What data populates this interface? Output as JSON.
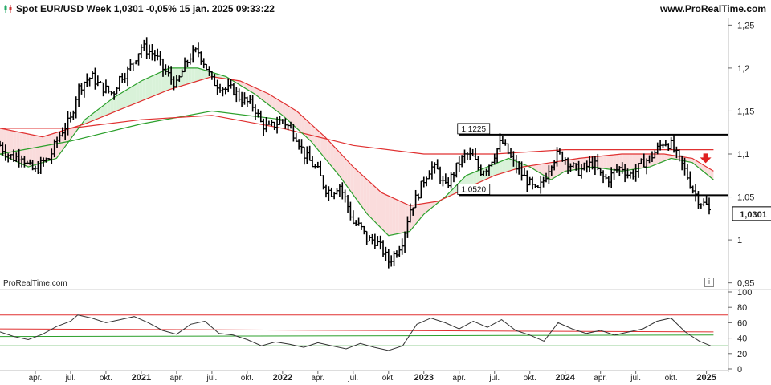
{
  "header": {
    "title": "Spot EUR/USD Week 1,0301 -0,05% 15 jan. 2025 09:33:22",
    "brand": "www.ProRealTime.com"
  },
  "watermark": "ProRealTime.com",
  "info_icon": "i",
  "icons": {
    "chart_icon": "candlestick-icon",
    "signal": "down-arrow-icon",
    "info": "info-icon"
  },
  "colors": {
    "price": "#000000",
    "ma_fast": "#2ca02c",
    "ma_slow": "#e03030",
    "rsi_upper": "#e03030",
    "rsi_lower": "#2ca02c",
    "signal": "#e02020",
    "fill_green": "#d9f2d9",
    "fill_red": "#fadcdc"
  },
  "chart_data": [
    {
      "type": "ohlc",
      "title": "Spot EUR/USD Week",
      "last_value": "1,0301",
      "ylim": [
        0.945,
        1.255
      ],
      "y_ticks": [
        "1,25",
        "1,2",
        "1,15",
        "1,1",
        "1,05",
        "1",
        "0,95"
      ],
      "y_tick_values": [
        1.25,
        1.2,
        1.15,
        1.1,
        1.05,
        1.0,
        0.95
      ],
      "x_ticks": [
        "apr.",
        "jul.",
        "okt.",
        "2021",
        "apr.",
        "jul.",
        "okt.",
        "2022",
        "apr.",
        "jul.",
        "okt.",
        "2023",
        "apr.",
        "jul.",
        "okt.",
        "2024",
        "apr.",
        "jul.",
        "okt.",
        "2025"
      ],
      "x_tick_dates": [
        2020.25,
        2020.5,
        2020.75,
        2021.0,
        2021.25,
        2021.5,
        2021.75,
        2022.0,
        2022.25,
        2022.5,
        2022.75,
        2023.0,
        2023.25,
        2023.5,
        2023.75,
        2024.0,
        2024.25,
        2024.5,
        2024.75,
        2025.0
      ],
      "xlim": [
        2020.0,
        2025.15
      ],
      "close_path": [
        [
          2020.0,
          1.11
        ],
        [
          2020.05,
          1.1
        ],
        [
          2020.1,
          1.095
        ],
        [
          2020.15,
          1.1
        ],
        [
          2020.2,
          1.085
        ],
        [
          2020.25,
          1.08
        ],
        [
          2020.3,
          1.09
        ],
        [
          2020.35,
          1.095
        ],
        [
          2020.4,
          1.115
        ],
        [
          2020.45,
          1.13
        ],
        [
          2020.5,
          1.14
        ],
        [
          2020.55,
          1.175
        ],
        [
          2020.6,
          1.185
        ],
        [
          2020.65,
          1.19
        ],
        [
          2020.7,
          1.18
        ],
        [
          2020.75,
          1.175
        ],
        [
          2020.8,
          1.17
        ],
        [
          2020.85,
          1.19
        ],
        [
          2020.9,
          1.195
        ],
        [
          2020.95,
          1.21
        ],
        [
          2021.0,
          1.225
        ],
        [
          2021.05,
          1.22
        ],
        [
          2021.1,
          1.215
        ],
        [
          2021.15,
          1.2
        ],
        [
          2021.2,
          1.19
        ],
        [
          2021.25,
          1.18
        ],
        [
          2021.3,
          1.2
        ],
        [
          2021.35,
          1.215
        ],
        [
          2021.4,
          1.22
        ],
        [
          2021.45,
          1.205
        ],
        [
          2021.5,
          1.185
        ],
        [
          2021.55,
          1.18
        ],
        [
          2021.6,
          1.175
        ],
        [
          2021.65,
          1.175
        ],
        [
          2021.7,
          1.165
        ],
        [
          2021.75,
          1.16
        ],
        [
          2021.8,
          1.155
        ],
        [
          2021.85,
          1.135
        ],
        [
          2021.9,
          1.13
        ],
        [
          2021.95,
          1.135
        ],
        [
          2022.0,
          1.14
        ],
        [
          2022.05,
          1.13
        ],
        [
          2022.1,
          1.12
        ],
        [
          2022.15,
          1.1
        ],
        [
          2022.2,
          1.09
        ],
        [
          2022.25,
          1.08
        ],
        [
          2022.3,
          1.06
        ],
        [
          2022.35,
          1.055
        ],
        [
          2022.4,
          1.065
        ],
        [
          2022.45,
          1.045
        ],
        [
          2022.5,
          1.02
        ],
        [
          2022.55,
          1.015
        ],
        [
          2022.6,
          1.0
        ],
        [
          2022.65,
          1.0
        ],
        [
          2022.7,
          0.99
        ],
        [
          2022.75,
          0.975
        ],
        [
          2022.8,
          0.985
        ],
        [
          2022.85,
          1.0
        ],
        [
          2022.9,
          1.035
        ],
        [
          2022.95,
          1.05
        ],
        [
          2023.0,
          1.07
        ],
        [
          2023.05,
          1.085
        ],
        [
          2023.1,
          1.08
        ],
        [
          2023.15,
          1.06
        ],
        [
          2023.2,
          1.075
        ],
        [
          2023.25,
          1.09
        ],
        [
          2023.3,
          1.1
        ],
        [
          2023.35,
          1.095
        ],
        [
          2023.4,
          1.08
        ],
        [
          2023.45,
          1.085
        ],
        [
          2023.5,
          1.1
        ],
        [
          2023.55,
          1.115
        ],
        [
          2023.6,
          1.1
        ],
        [
          2023.65,
          1.085
        ],
        [
          2023.7,
          1.075
        ],
        [
          2023.75,
          1.065
        ],
        [
          2023.8,
          1.055
        ],
        [
          2023.85,
          1.07
        ],
        [
          2023.9,
          1.09
        ],
        [
          2023.95,
          1.1
        ],
        [
          2024.0,
          1.095
        ],
        [
          2024.05,
          1.085
        ],
        [
          2024.1,
          1.08
        ],
        [
          2024.15,
          1.085
        ],
        [
          2024.2,
          1.09
        ],
        [
          2024.25,
          1.075
        ],
        [
          2024.3,
          1.07
        ],
        [
          2024.35,
          1.08
        ],
        [
          2024.4,
          1.085
        ],
        [
          2024.45,
          1.075
        ],
        [
          2024.5,
          1.08
        ],
        [
          2024.55,
          1.09
        ],
        [
          2024.6,
          1.095
        ],
        [
          2024.65,
          1.105
        ],
        [
          2024.7,
          1.115
        ],
        [
          2024.75,
          1.11
        ],
        [
          2024.8,
          1.095
        ],
        [
          2024.85,
          1.08
        ],
        [
          2024.9,
          1.06
        ],
        [
          2024.95,
          1.045
        ],
        [
          2025.0,
          1.04
        ],
        [
          2025.03,
          1.03
        ]
      ],
      "ma_fast_path": [
        [
          2020.0,
          1.1
        ],
        [
          2020.2,
          1.085
        ],
        [
          2020.4,
          1.095
        ],
        [
          2020.6,
          1.14
        ],
        [
          2020.8,
          1.165
        ],
        [
          2021.0,
          1.185
        ],
        [
          2021.2,
          1.2
        ],
        [
          2021.4,
          1.2
        ],
        [
          2021.6,
          1.19
        ],
        [
          2021.8,
          1.17
        ],
        [
          2022.0,
          1.145
        ],
        [
          2022.2,
          1.115
        ],
        [
          2022.4,
          1.075
        ],
        [
          2022.6,
          1.03
        ],
        [
          2022.75,
          1.005
        ],
        [
          2022.9,
          1.01
        ],
        [
          2023.0,
          1.03
        ],
        [
          2023.15,
          1.05
        ],
        [
          2023.3,
          1.075
        ],
        [
          2023.45,
          1.085
        ],
        [
          2023.6,
          1.095
        ],
        [
          2023.75,
          1.085
        ],
        [
          2023.9,
          1.07
        ],
        [
          2024.0,
          1.08
        ],
        [
          2024.2,
          1.085
        ],
        [
          2024.4,
          1.08
        ],
        [
          2024.6,
          1.085
        ],
        [
          2024.75,
          1.095
        ],
        [
          2024.9,
          1.09
        ],
        [
          2025.05,
          1.07
        ]
      ],
      "ma_slow_path": [
        [
          2020.0,
          1.13
        ],
        [
          2020.3,
          1.12
        ],
        [
          2020.6,
          1.135
        ],
        [
          2020.9,
          1.155
        ],
        [
          2021.2,
          1.175
        ],
        [
          2021.5,
          1.19
        ],
        [
          2021.7,
          1.185
        ],
        [
          2021.9,
          1.17
        ],
        [
          2022.1,
          1.15
        ],
        [
          2022.3,
          1.12
        ],
        [
          2022.5,
          1.085
        ],
        [
          2022.7,
          1.055
        ],
        [
          2022.9,
          1.04
        ],
        [
          2023.1,
          1.045
        ],
        [
          2023.3,
          1.06
        ],
        [
          2023.5,
          1.075
        ],
        [
          2023.7,
          1.085
        ],
        [
          2023.9,
          1.09
        ],
        [
          2024.1,
          1.095
        ],
        [
          2024.4,
          1.1
        ],
        [
          2024.7,
          1.1
        ],
        [
          2024.9,
          1.095
        ],
        [
          2025.05,
          1.08
        ]
      ],
      "ma_fast_long_path": [
        [
          2020.0,
          1.1
        ],
        [
          2020.5,
          1.115
        ],
        [
          2021.0,
          1.135
        ],
        [
          2021.5,
          1.15
        ],
        [
          2022.0,
          1.14
        ]
      ],
      "ma_slow_long_path": [
        [
          2020.0,
          1.13
        ],
        [
          2020.5,
          1.13
        ],
        [
          2021.0,
          1.14
        ],
        [
          2021.5,
          1.145
        ],
        [
          2022.0,
          1.13
        ],
        [
          2022.5,
          1.11
        ],
        [
          2023.0,
          1.1
        ],
        [
          2023.5,
          1.1
        ],
        [
          2024.0,
          1.105
        ],
        [
          2024.5,
          1.105
        ],
        [
          2025.05,
          1.105
        ]
      ],
      "resistance": {
        "value": 1.1225,
        "label": "1,1225",
        "x_start": 2023.25,
        "x_end": 2025.15
      },
      "support": {
        "value": 1.052,
        "label": "1,0520",
        "x_start": 2023.25,
        "x_end": 2025.15
      },
      "signal_marker": {
        "x": 2025.0,
        "y": 1.095
      }
    },
    {
      "type": "line",
      "title": "",
      "ylim": [
        0,
        100
      ],
      "y_ticks": [
        "100",
        "80",
        "60",
        "40",
        "20",
        "0"
      ],
      "y_tick_values": [
        100,
        80,
        60,
        40,
        20,
        0
      ],
      "upper_band_start": 70,
      "upper_band_end": 48,
      "lower_band": 30,
      "rsi_path": [
        [
          2020.0,
          48
        ],
        [
          2020.1,
          42
        ],
        [
          2020.2,
          38
        ],
        [
          2020.3,
          45
        ],
        [
          2020.4,
          55
        ],
        [
          2020.5,
          62
        ],
        [
          2020.55,
          70
        ],
        [
          2020.65,
          66
        ],
        [
          2020.75,
          60
        ],
        [
          2020.85,
          64
        ],
        [
          2020.95,
          68
        ],
        [
          2021.05,
          60
        ],
        [
          2021.15,
          50
        ],
        [
          2021.25,
          45
        ],
        [
          2021.35,
          58
        ],
        [
          2021.45,
          62
        ],
        [
          2021.55,
          46
        ],
        [
          2021.65,
          44
        ],
        [
          2021.75,
          38
        ],
        [
          2021.85,
          30
        ],
        [
          2021.95,
          35
        ],
        [
          2022.05,
          32
        ],
        [
          2022.15,
          28
        ],
        [
          2022.25,
          34
        ],
        [
          2022.35,
          30
        ],
        [
          2022.45,
          26
        ],
        [
          2022.55,
          33
        ],
        [
          2022.65,
          28
        ],
        [
          2022.75,
          24
        ],
        [
          2022.85,
          30
        ],
        [
          2022.95,
          58
        ],
        [
          2023.05,
          66
        ],
        [
          2023.15,
          60
        ],
        [
          2023.25,
          52
        ],
        [
          2023.35,
          62
        ],
        [
          2023.45,
          54
        ],
        [
          2023.55,
          64
        ],
        [
          2023.65,
          50
        ],
        [
          2023.75,
          44
        ],
        [
          2023.85,
          36
        ],
        [
          2023.95,
          60
        ],
        [
          2024.05,
          52
        ],
        [
          2024.15,
          46
        ],
        [
          2024.25,
          50
        ],
        [
          2024.35,
          44
        ],
        [
          2024.45,
          48
        ],
        [
          2024.55,
          52
        ],
        [
          2024.65,
          62
        ],
        [
          2024.75,
          66
        ],
        [
          2024.85,
          48
        ],
        [
          2024.95,
          36
        ],
        [
          2025.03,
          30
        ]
      ]
    }
  ]
}
